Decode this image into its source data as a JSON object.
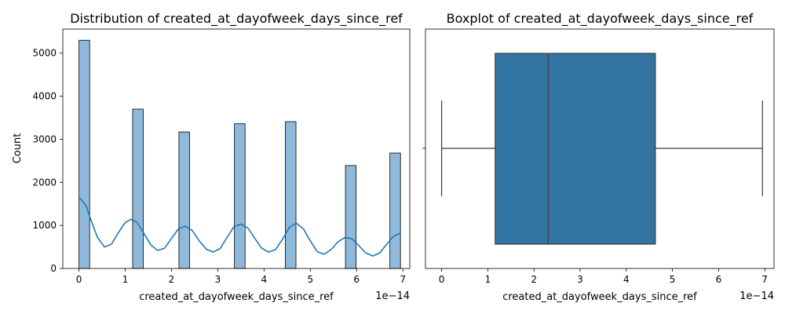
{
  "chart_data": [
    {
      "type": "bar",
      "title": "Distribution of created_at_dayofweek_days_since_ref",
      "xlabel": "created_at_dayofweek_days_since_ref",
      "ylabel": "Count",
      "x_offset_label": "1e−14",
      "xlim": [
        -0.35,
        7.15
      ],
      "ylim": [
        0,
        5560
      ],
      "xticks": [
        0,
        1,
        2,
        3,
        4,
        5,
        6,
        7
      ],
      "yticks": [
        0,
        1000,
        2000,
        3000,
        4000,
        5000
      ],
      "bar_color": "#8fb9da",
      "kde_color": "#1f77b4",
      "bars": [
        {
          "x0": 0.0,
          "x1": 0.23,
          "value": 5300
        },
        {
          "x0": 1.16,
          "x1": 1.39,
          "value": 3700
        },
        {
          "x0": 2.16,
          "x1": 2.39,
          "value": 3170
        },
        {
          "x0": 3.36,
          "x1": 3.59,
          "value": 3360
        },
        {
          "x0": 4.46,
          "x1": 4.69,
          "value": 3410
        },
        {
          "x0": 5.76,
          "x1": 5.99,
          "value": 2390
        },
        {
          "x0": 6.72,
          "x1": 6.95,
          "value": 2680
        }
      ],
      "kde": [
        [
          0.0,
          1630
        ],
        [
          0.05,
          1600
        ],
        [
          0.15,
          1460
        ],
        [
          0.25,
          1150
        ],
        [
          0.4,
          720
        ],
        [
          0.55,
          500
        ],
        [
          0.7,
          560
        ],
        [
          0.85,
          830
        ],
        [
          1.0,
          1070
        ],
        [
          1.12,
          1140
        ],
        [
          1.25,
          1080
        ],
        [
          1.4,
          820
        ],
        [
          1.55,
          550
        ],
        [
          1.7,
          420
        ],
        [
          1.85,
          470
        ],
        [
          2.0,
          700
        ],
        [
          2.15,
          920
        ],
        [
          2.3,
          980
        ],
        [
          2.45,
          880
        ],
        [
          2.6,
          640
        ],
        [
          2.75,
          450
        ],
        [
          2.9,
          380
        ],
        [
          3.05,
          460
        ],
        [
          3.2,
          720
        ],
        [
          3.35,
          970
        ],
        [
          3.5,
          1030
        ],
        [
          3.65,
          940
        ],
        [
          3.8,
          700
        ],
        [
          3.95,
          470
        ],
        [
          4.1,
          380
        ],
        [
          4.25,
          440
        ],
        [
          4.4,
          680
        ],
        [
          4.55,
          960
        ],
        [
          4.7,
          1050
        ],
        [
          4.85,
          920
        ],
        [
          5.0,
          640
        ],
        [
          5.15,
          390
        ],
        [
          5.3,
          330
        ],
        [
          5.45,
          440
        ],
        [
          5.6,
          620
        ],
        [
          5.75,
          720
        ],
        [
          5.9,
          690
        ],
        [
          6.05,
          530
        ],
        [
          6.2,
          360
        ],
        [
          6.35,
          290
        ],
        [
          6.5,
          360
        ],
        [
          6.65,
          560
        ],
        [
          6.8,
          750
        ],
        [
          6.95,
          820
        ]
      ]
    },
    {
      "type": "box",
      "title": "Boxplot of created_at_dayofweek_days_since_ref",
      "xlabel": "created_at_dayofweek_days_since_ref",
      "x_offset_label": "1e−14",
      "xlim": [
        -0.35,
        7.2
      ],
      "xticks": [
        0,
        1,
        2,
        3,
        4,
        5,
        6,
        7
      ],
      "box_color": "#3274a1",
      "whisker_low": 0.0,
      "q1": 1.16,
      "median": 2.31,
      "q3": 4.63,
      "whisker_high": 6.95
    }
  ]
}
